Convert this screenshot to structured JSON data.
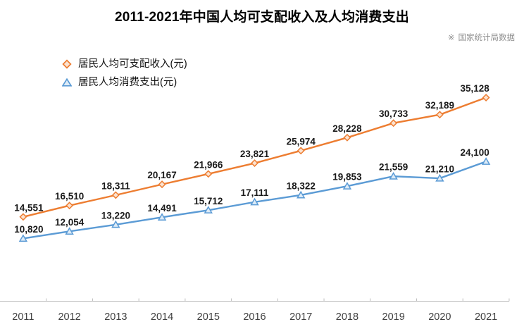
{
  "source": {
    "mark": "※",
    "text": "国家统计局数据"
  },
  "chart_data": {
    "type": "line",
    "title": "2011-2021年中国人均可支配收入及人均消费支出",
    "categories": [
      "2011",
      "2012",
      "2013",
      "2014",
      "2015",
      "2016",
      "2017",
      "2018",
      "2019",
      "2020",
      "2021"
    ],
    "series": [
      {
        "name": "居民人均可支配收入(元)",
        "values": [
          14551,
          16510,
          18311,
          20167,
          21966,
          23821,
          25974,
          28228,
          30733,
          32189,
          35128
        ],
        "color": "#ED7D31",
        "marker": "diamond",
        "marker_fill": "#FBE3D1"
      },
      {
        "name": "居民人均消费支出(元)",
        "values": [
          10820,
          12054,
          13220,
          14491,
          15712,
          17111,
          18322,
          19853,
          21559,
          21210,
          24100
        ],
        "color": "#5B9BD5",
        "marker": "triangle",
        "marker_fill": "#DDEBF7"
      }
    ],
    "xlabel": "",
    "ylabel": "",
    "ylim": [
      0,
      40000
    ],
    "grid": false,
    "data_labels": true,
    "legend_position": "top-left",
    "axis_color": "#BFBFBF",
    "data_label_color": "#1a1a1a",
    "tick_label_color": "#404040",
    "source_note": "※ 国家统计局数据"
  }
}
